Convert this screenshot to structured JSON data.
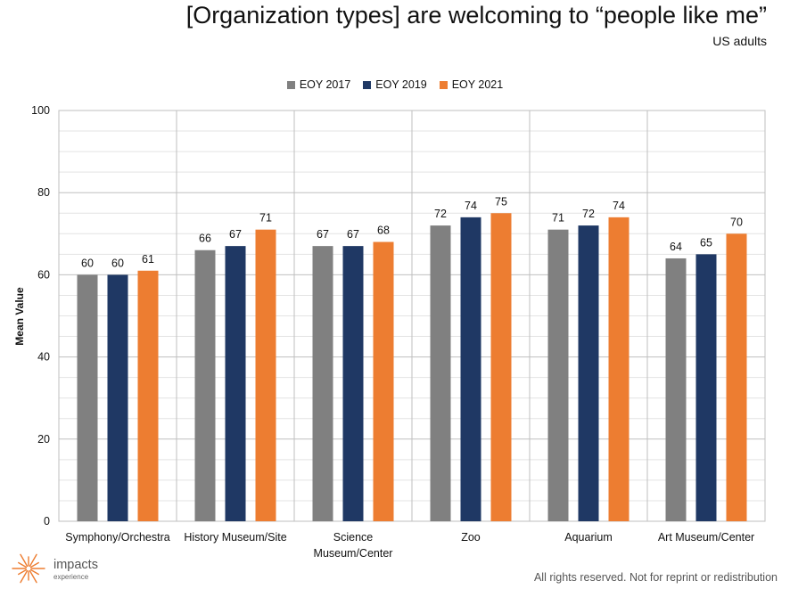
{
  "header": {
    "title": "[Organization types] are welcoming to “people like me”",
    "subtitle": "US adults"
  },
  "footer": {
    "logo_name": "impacts",
    "logo_sub": "experience",
    "rights": "All rights reserved. Not for reprint or redistribution"
  },
  "colors": {
    "EOY 2017": "#808080",
    "EOY 2019": "#1f3864",
    "EOY 2021": "#ed7d31",
    "logo": "#ed7d31"
  },
  "icons": [
    "sunburst-logo-icon"
  ],
  "chart_data": {
    "type": "bar",
    "ylabel": "Mean Value",
    "xlabel": "",
    "ylim": [
      0,
      100
    ],
    "yticks": [
      0,
      20,
      40,
      60,
      80,
      100
    ],
    "grid": true,
    "legend_position": "top-center",
    "categories": [
      "Symphony/Orchestra",
      "History Museum/Site",
      "Science Museum/Center",
      "Zoo",
      "Aquarium",
      "Art Museum/Center"
    ],
    "category_label_lines": [
      [
        "Symphony/Orchestra"
      ],
      [
        "History Museum/Site"
      ],
      [
        "Science",
        "Museum/Center"
      ],
      [
        "Zoo"
      ],
      [
        "Aquarium"
      ],
      [
        "Art Museum/Center"
      ]
    ],
    "series": [
      {
        "name": "EOY 2017",
        "values": [
          60,
          66,
          67,
          72,
          71,
          64
        ]
      },
      {
        "name": "EOY 2019",
        "values": [
          60,
          67,
          67,
          74,
          72,
          65
        ]
      },
      {
        "name": "EOY 2021",
        "values": [
          61,
          71,
          68,
          75,
          74,
          70
        ]
      }
    ]
  }
}
